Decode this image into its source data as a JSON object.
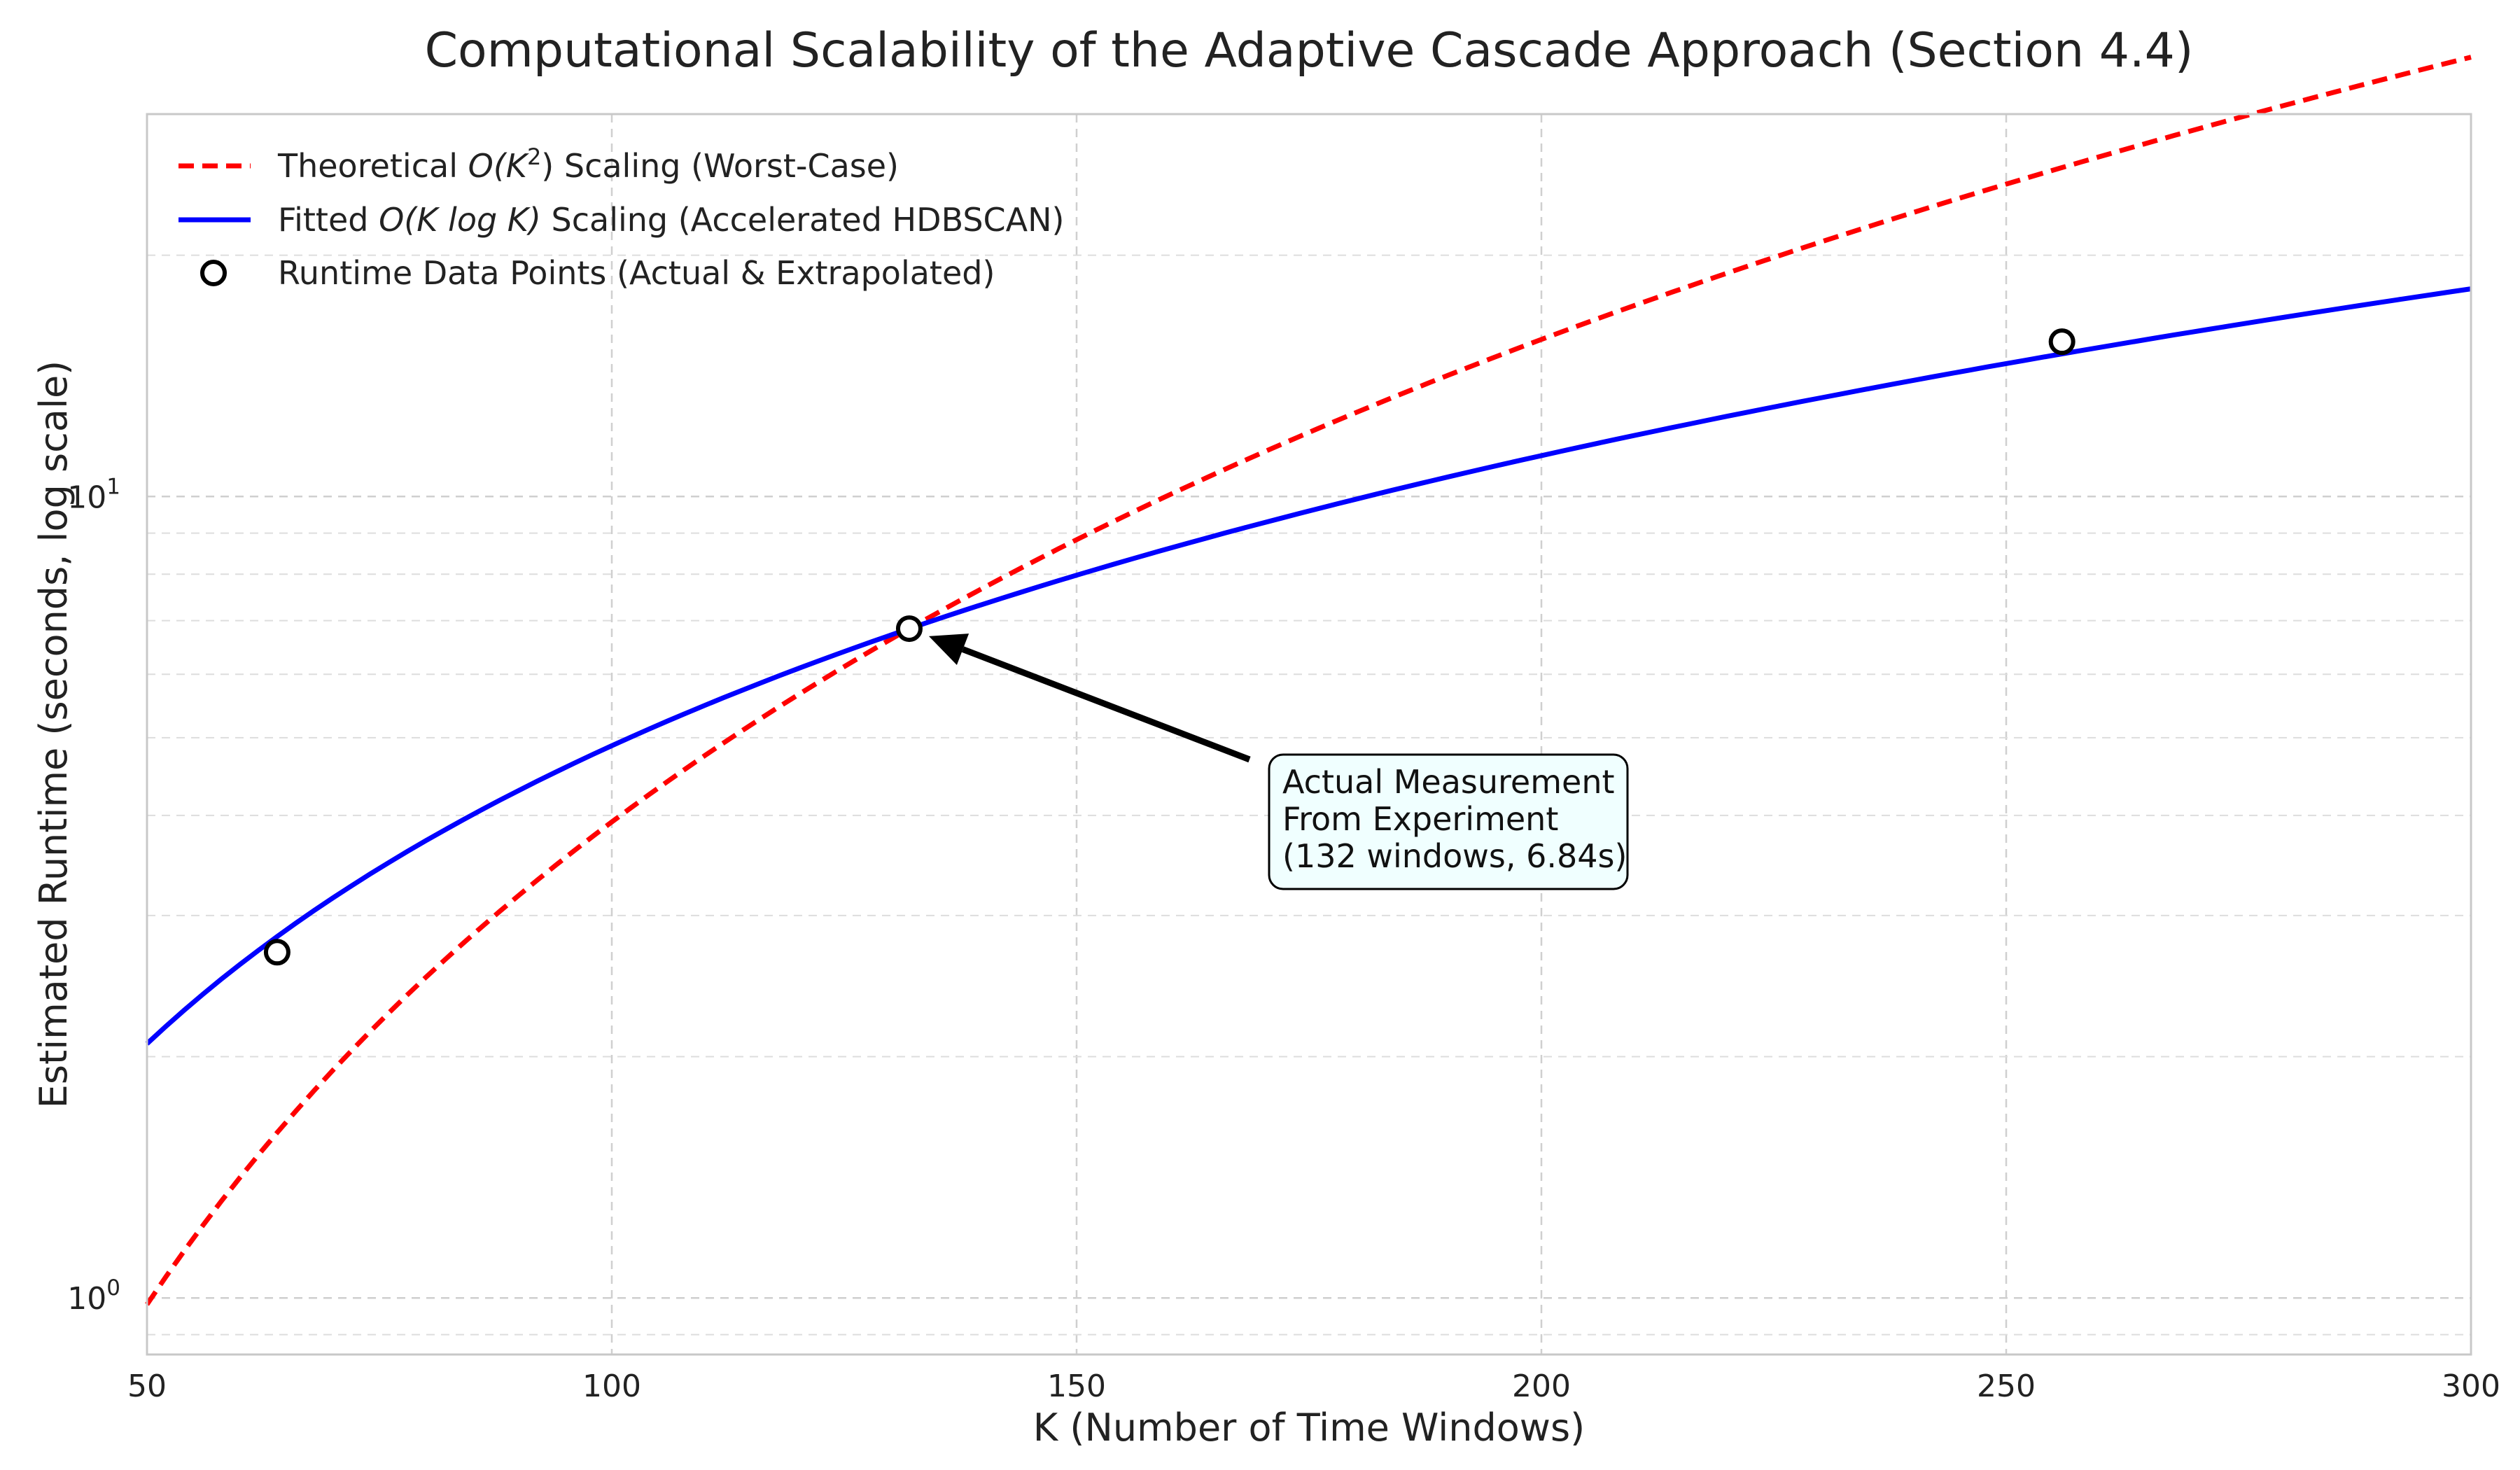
{
  "chart_data": {
    "type": "line",
    "title": "Computational Scalability of the Adaptive Cascade Approach (Section 4.4)",
    "xlabel": "K (Number of Time Windows)",
    "ylabel": "Estimated Runtime (seconds, log scale)",
    "xlim": [
      50,
      300
    ],
    "ylim": [
      0.85,
      30
    ],
    "yscale": "log",
    "grid": true,
    "legend_position": "top-left",
    "x_ticks": [
      50,
      100,
      150,
      200,
      250,
      300
    ],
    "x_tick_labels": [
      "50",
      "100",
      "150",
      "200",
      "250",
      "300"
    ],
    "y_major_ticks": [
      1,
      10
    ],
    "y_tick_bases": [
      "10",
      "10"
    ],
    "y_tick_exponents": [
      "0",
      "1"
    ],
    "y_minor_ticks": [
      0.9,
      2,
      3,
      4,
      5,
      6,
      7,
      8,
      9,
      20
    ],
    "series": [
      {
        "name": "Theoretical O(K²) Scaling (Worst-Case)",
        "legend_label": {
          "prefix": "Theoretical ",
          "math": "O(K",
          "sup": "2",
          "math_end": ")",
          "suffix": " Scaling (Worst-Case)"
        },
        "style": "dashed",
        "color": "#ff0000",
        "model": "K^2",
        "x": [
          50,
          64,
          100,
          132,
          150,
          200,
          250,
          256,
          300
        ],
        "y": [
          0.98,
          1.61,
          3.92,
          6.84,
          8.83,
          15.7,
          24.53,
          25.72,
          35.32
        ]
      },
      {
        "name": "Fitted O(K log K) Scaling (Accelerated HDBSCAN)",
        "legend_label": {
          "prefix": "Fitted ",
          "math": "O(K log K)",
          "suffix": " Scaling (Accelerated HDBSCAN)"
        },
        "style": "solid",
        "color": "#0000ff",
        "model": "K*log(K)",
        "x": [
          50,
          64,
          100,
          132,
          150,
          200,
          250,
          256,
          300
        ],
        "y": [
          2.03,
          2.7,
          4.78,
          6.84,
          8.05,
          11.5,
          15.15,
          15.6,
          18.85
        ]
      },
      {
        "name": "Runtime Data Points (Actual & Extrapolated)",
        "style": "markers",
        "marker": "open-circle",
        "color": "#000000",
        "x": [
          64,
          132,
          256
        ],
        "y": [
          2.7,
          6.84,
          15.6
        ]
      }
    ],
    "annotation": {
      "lines": [
        "Actual Measurement",
        "From Experiment",
        "(132 windows, 6.84s)"
      ],
      "target": {
        "x": 132,
        "y": 6.84
      },
      "box_color": "#f0ffff"
    }
  }
}
